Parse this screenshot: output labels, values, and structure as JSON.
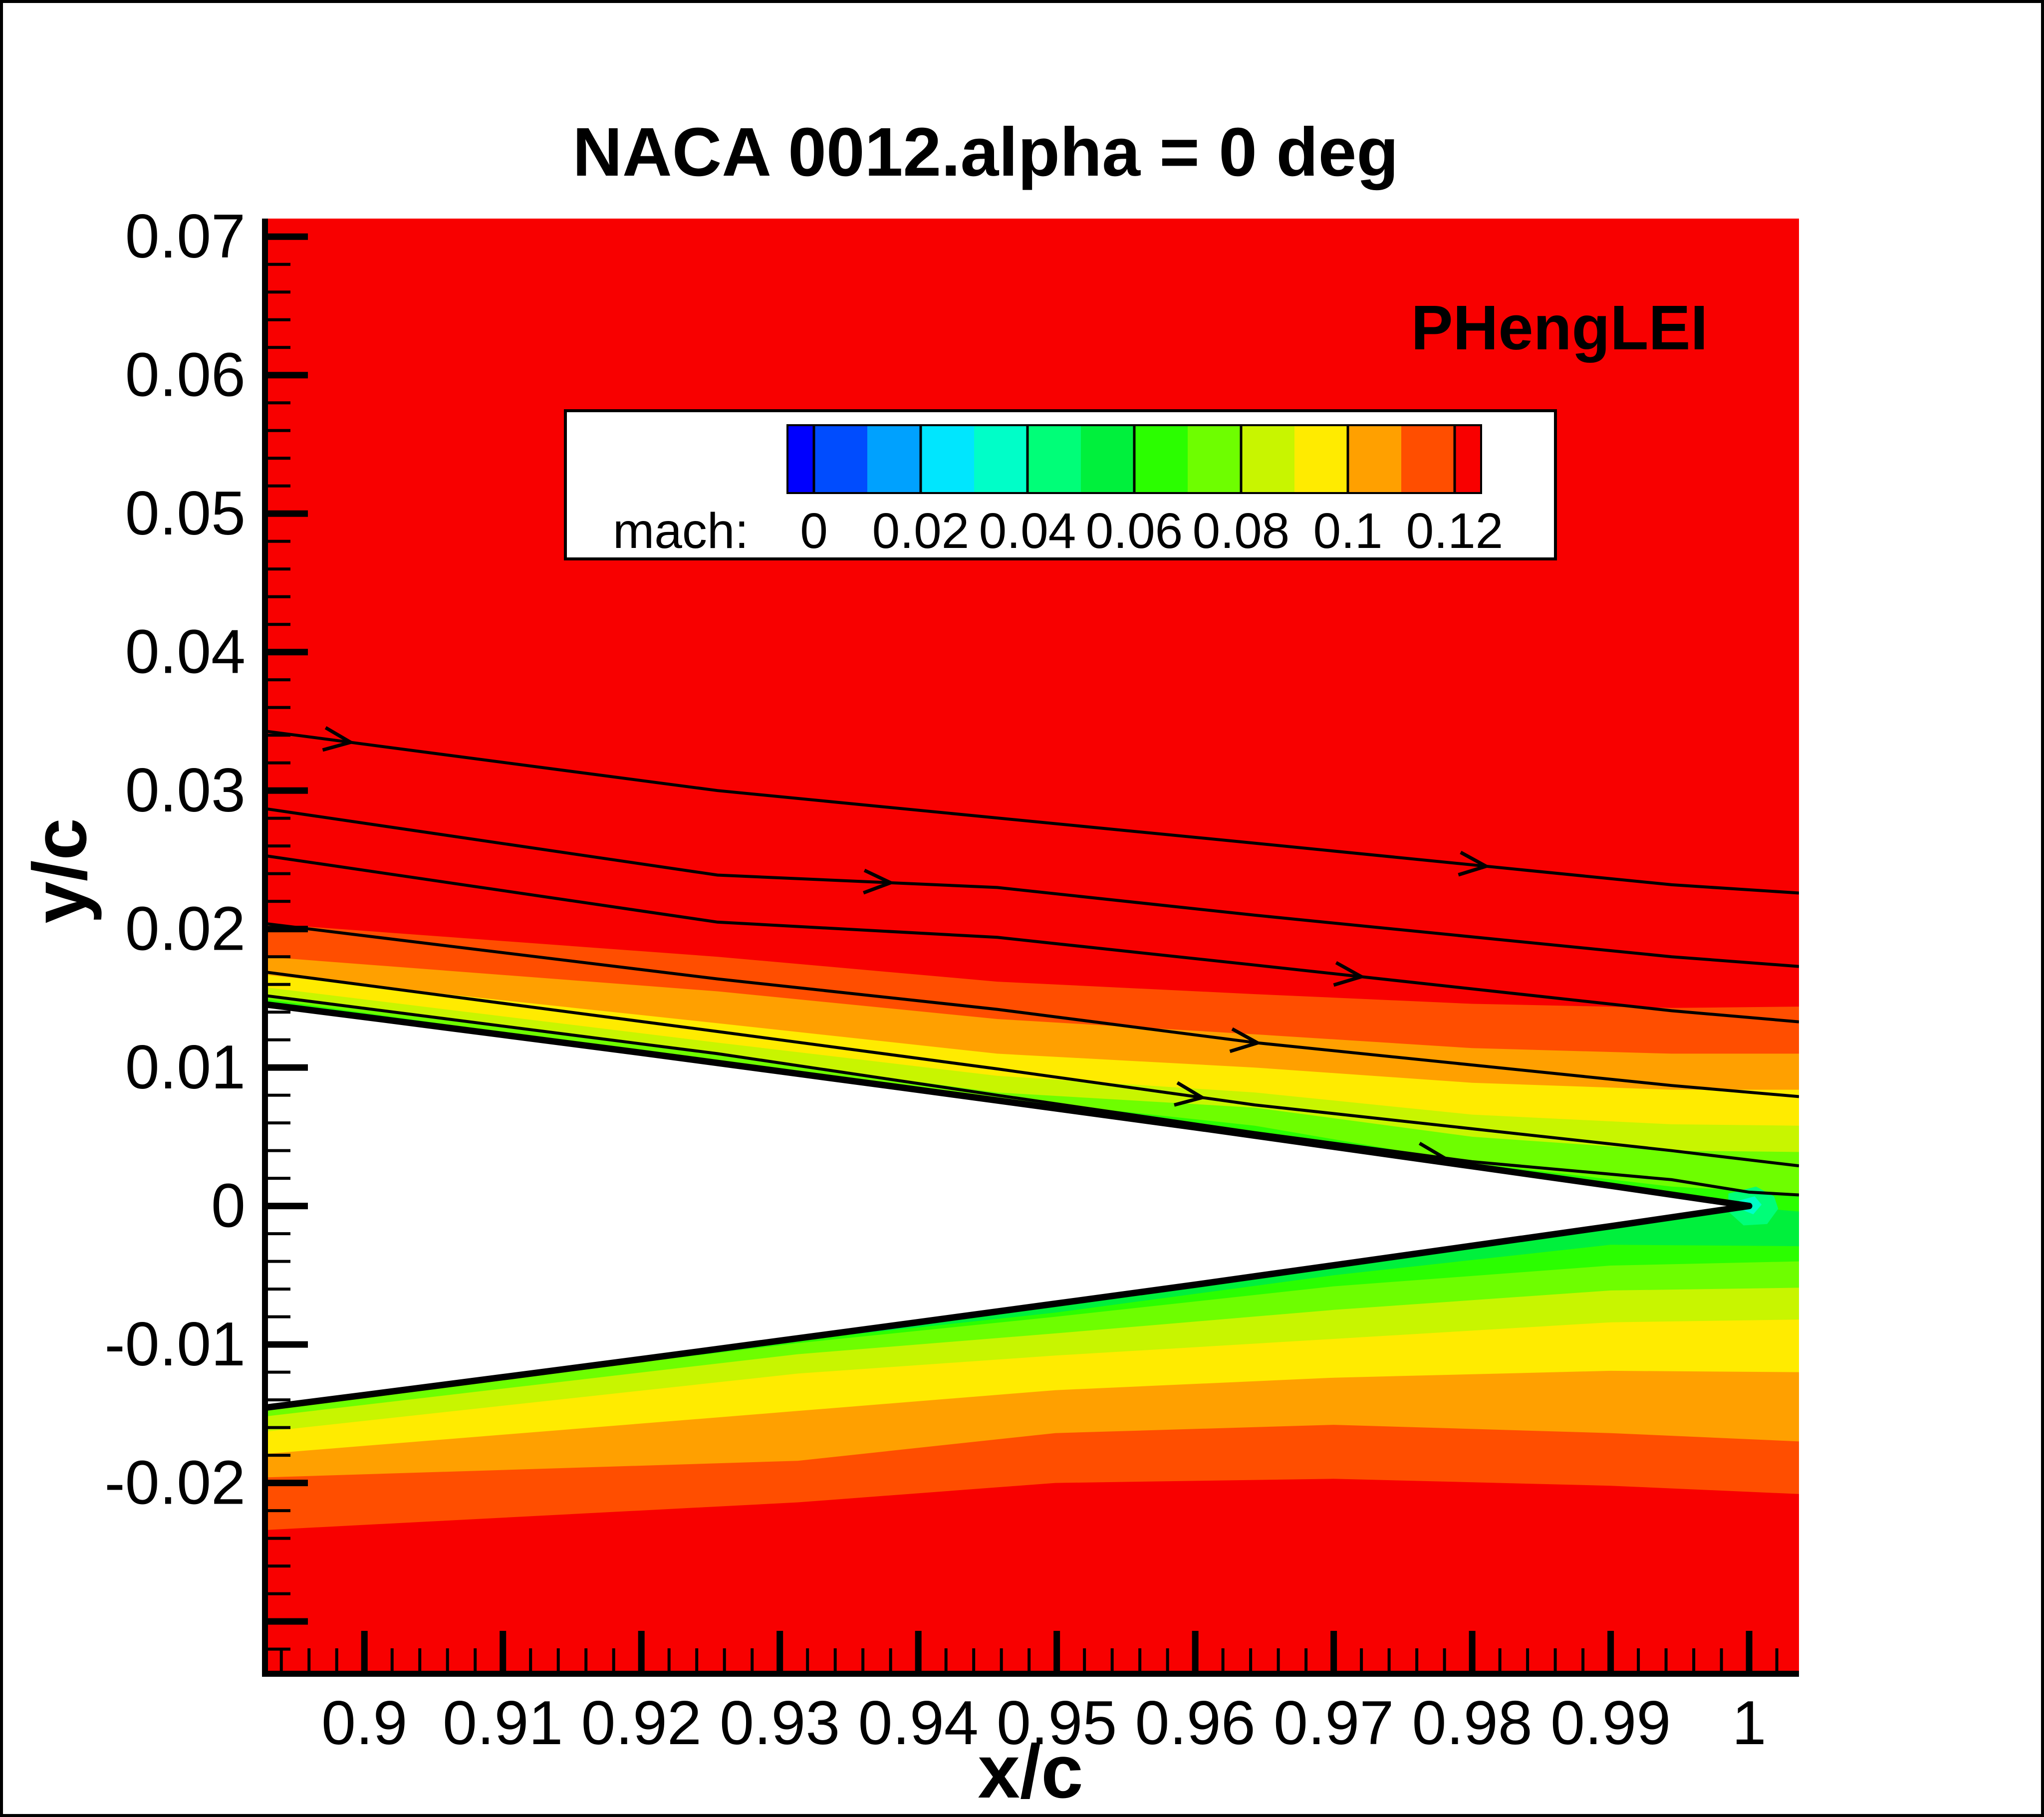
{
  "canvas": {
    "background": "#ffffff",
    "frame_color": "#000000"
  },
  "header": {
    "title": "NACA 0012.alpha = 0 deg"
  },
  "watermark": {
    "text": "PHengLEI",
    "color": "#000000"
  },
  "chart_data": {
    "type": "heatmap",
    "subtype": "filled-contour-with-streamlines",
    "title": "NACA 0012.alpha = 0 deg",
    "xlabel": "x/c",
    "ylabel": "y/c",
    "xlim": [
      0.89282,
      1.0036
    ],
    "ylim": [
      -0.03378,
      0.07134
    ],
    "grid": false,
    "field_color": "#f80000",
    "quantity": "mach",
    "contour_levels": [
      0,
      0.01,
      0.02,
      0.03,
      0.04,
      0.05,
      0.06,
      0.07,
      0.08,
      0.09,
      0.1,
      0.11,
      0.12
    ],
    "x_major_ticks": [
      {
        "v": 0.9,
        "label": "0.9"
      },
      {
        "v": 0.91,
        "label": "0.91"
      },
      {
        "v": 0.92,
        "label": "0.92"
      },
      {
        "v": 0.93,
        "label": "0.93"
      },
      {
        "v": 0.94,
        "label": "0.94"
      },
      {
        "v": 0.95,
        "label": "0.95"
      },
      {
        "v": 0.96,
        "label": "0.96"
      },
      {
        "v": 0.97,
        "label": "0.97"
      },
      {
        "v": 0.98,
        "label": "0.98"
      },
      {
        "v": 0.99,
        "label": "0.99"
      },
      {
        "v": 1.0,
        "label": "1"
      }
    ],
    "y_major_ticks": [
      {
        "v": 0.07,
        "label": "0.07"
      },
      {
        "v": 0.06,
        "label": "0.06"
      },
      {
        "v": 0.05,
        "label": "0.05"
      },
      {
        "v": 0.04,
        "label": "0.04"
      },
      {
        "v": 0.03,
        "label": "0.03"
      },
      {
        "v": 0.02,
        "label": "0.02"
      },
      {
        "v": 0.01,
        "label": "0.01"
      },
      {
        "v": 0.0,
        "label": "0"
      },
      {
        "v": -0.01,
        "label": "-0.01"
      },
      {
        "v": -0.02,
        "label": "-0.02"
      },
      {
        "v": -0.03,
        "label": ""
      }
    ],
    "x_minor": {
      "start": 0.894,
      "end": 1.002,
      "step": 0.002
    },
    "y_minor": {
      "start": -0.032,
      "end": 0.068,
      "step": 0.002
    },
    "bands": [
      {
        "level": "0.11-0.12",
        "color": "#FF4E00",
        "upper": [
          [
            0.8928,
            0.0204
          ],
          [
            0.9255,
            0.018
          ],
          [
            0.9457,
            0.0162
          ],
          [
            0.9643,
            0.0153
          ],
          [
            0.98,
            0.0146
          ],
          [
            0.9944,
            0.0143
          ],
          [
            1.0036,
            0.0144
          ]
        ],
        "lower": [
          [
            0.8928,
            -0.0234
          ],
          [
            0.9313,
            -0.0214
          ],
          [
            0.9499,
            -0.02
          ],
          [
            0.97,
            -0.0197
          ],
          [
            0.99,
            -0.0202
          ],
          [
            1.0036,
            -0.0208
          ]
        ]
      },
      {
        "level": "0.10-0.11",
        "color": "#FFA000",
        "upper": [
          [
            0.8928,
            0.018
          ],
          [
            0.9255,
            0.0155
          ],
          [
            0.9457,
            0.0135
          ],
          [
            0.9643,
            0.0124
          ],
          [
            0.98,
            0.0114
          ],
          [
            0.9944,
            0.011
          ],
          [
            1.0036,
            0.011
          ]
        ],
        "lower": [
          [
            0.8928,
            -0.0196
          ],
          [
            0.9313,
            -0.0184
          ],
          [
            0.9499,
            -0.0164
          ],
          [
            0.97,
            -0.0158
          ],
          [
            0.99,
            -0.0164
          ],
          [
            1.0036,
            -0.017
          ]
        ]
      },
      {
        "level": "0.09-0.10",
        "color": "#FFEB00",
        "upper": [
          [
            0.8928,
            0.0167
          ],
          [
            0.9255,
            0.0132
          ],
          [
            0.9457,
            0.011
          ],
          [
            0.9643,
            0.01
          ],
          [
            0.98,
            0.0089
          ],
          [
            0.9944,
            0.0084
          ],
          [
            1.0036,
            0.0084
          ]
        ],
        "lower": [
          [
            0.8928,
            -0.0179
          ],
          [
            0.9313,
            -0.0148
          ],
          [
            0.9499,
            -0.0133
          ],
          [
            0.97,
            -0.0124
          ],
          [
            0.99,
            -0.0119
          ],
          [
            1.0036,
            -0.012
          ]
        ]
      },
      {
        "level": "0.08-0.09",
        "color": "#C8F500",
        "upper": [
          [
            0.8928,
            0.0158
          ],
          [
            0.9255,
            0.0118
          ],
          [
            0.9457,
            0.0094
          ],
          [
            0.9643,
            0.0082
          ],
          [
            0.98,
            0.0066
          ],
          [
            0.9944,
            0.0059
          ],
          [
            1.0036,
            0.0058
          ]
        ],
        "lower": [
          [
            0.8928,
            -0.0163
          ],
          [
            0.9313,
            -0.0121
          ],
          [
            0.9499,
            -0.0108
          ],
          [
            0.97,
            -0.0096
          ],
          [
            0.99,
            -0.0084
          ],
          [
            1.0036,
            -0.0082
          ]
        ]
      },
      {
        "level": "0.07-0.08",
        "color": "#6EFE00",
        "upper": [
          [
            0.8928,
            0.0153
          ],
          [
            0.9255,
            0.0109
          ],
          [
            0.9457,
            0.0082
          ],
          [
            0.9643,
            0.0071
          ],
          [
            0.98,
            0.005
          ],
          [
            0.9944,
            0.004
          ],
          [
            1.0036,
            0.0039
          ]
        ],
        "lower": [
          [
            0.8928,
            -0.0152
          ],
          [
            0.9313,
            -0.0107
          ],
          [
            0.9499,
            -0.0092
          ],
          [
            0.97,
            -0.0075
          ],
          [
            0.99,
            -0.0061
          ],
          [
            1.0036,
            -0.0059
          ]
        ]
      },
      {
        "level": "0.06-0.07",
        "color": "#2BFE00",
        "upper": [
          [
            0.8928,
            0.01495
          ],
          [
            0.9255,
            0.0104
          ],
          [
            0.9457,
            0.0078
          ],
          [
            0.9643,
            0.0058
          ],
          [
            0.98,
            0.0031
          ],
          [
            0.9944,
            0.0014
          ],
          [
            1.0036,
            0.0009
          ]
        ],
        "lower": [
          [
            0.8928,
            -0.0146
          ],
          [
            0.9313,
            -0.0099
          ],
          [
            0.9499,
            -0.008
          ],
          [
            0.97,
            -0.0058
          ],
          [
            0.99,
            -0.0043
          ],
          [
            1.0036,
            -0.004
          ]
        ]
      },
      {
        "level": "0.05-0.06",
        "color": "#00F03C",
        "upper": [
          [
            0.8928,
            0.0148
          ],
          [
            0.9255,
            0.0102
          ],
          [
            0.9457,
            0.0075
          ],
          [
            0.9643,
            0.0052
          ],
          [
            0.98,
            0.0024
          ],
          [
            0.9944,
            0.0004
          ],
          [
            1.0036,
            -0.0004
          ]
        ],
        "lower": [
          [
            0.8928,
            -0.0144
          ],
          [
            0.9313,
            -0.0097
          ],
          [
            0.9499,
            -0.0077
          ],
          [
            0.97,
            -0.005
          ],
          [
            0.99,
            -0.0028
          ],
          [
            1.0036,
            -0.0029
          ]
        ]
      }
    ],
    "te_blobs": [
      {
        "level": "0.04-0.05",
        "color": "#00FE78",
        "points": [
          [
            0.9985,
            0.0009
          ],
          [
            1.0005,
            0.0014
          ],
          [
            1.0018,
            0.0007
          ],
          [
            1.0021,
            -0.0002
          ],
          [
            1.0013,
            -0.0013
          ],
          [
            0.9996,
            -0.0014
          ],
          [
            0.9985,
            -0.0004
          ]
        ]
      },
      {
        "level": "0.03-0.04",
        "color": "#00FEC8",
        "points": [
          [
            0.9993,
            0.0004
          ],
          [
            1.0004,
            0.0007
          ],
          [
            1.0009,
            0.0001
          ],
          [
            1.0003,
            -0.0006
          ],
          [
            0.9993,
            -0.0002
          ]
        ]
      }
    ],
    "airfoil": {
      "name": "NACA 0012 trailing edge",
      "fill": "#ffffff",
      "stroke": "#000000",
      "upper": [
        [
          0.889,
          0.01505
        ],
        [
          0.9,
          0.01365
        ],
        [
          0.91,
          0.01236
        ],
        [
          0.92,
          0.01106
        ],
        [
          0.93,
          0.00973
        ],
        [
          0.94,
          0.00839
        ],
        [
          0.95,
          0.00704
        ],
        [
          0.96,
          0.00568
        ],
        [
          0.97,
          0.00428
        ],
        [
          0.98,
          0.00287
        ],
        [
          0.99,
          0.00146
        ],
        [
          1.0,
          0.0
        ]
      ]
    },
    "streamlines": [
      {
        "points": [
          [
            0.8928,
            0.0343
          ],
          [
            0.9255,
            0.03
          ],
          [
            0.9643,
            0.0262
          ],
          [
            0.9944,
            0.0232
          ],
          [
            1.0036,
            0.0226
          ]
        ],
        "arrows": [
          0.899,
          0.981
        ]
      },
      {
        "points": [
          [
            0.8928,
            0.0287
          ],
          [
            0.9255,
            0.0239
          ],
          [
            0.9457,
            0.023
          ],
          [
            0.9643,
            0.021
          ],
          [
            0.9944,
            0.018
          ],
          [
            1.0036,
            0.0173
          ]
        ],
        "arrows": [
          0.938
        ]
      },
      {
        "points": [
          [
            0.8928,
            0.0253
          ],
          [
            0.9255,
            0.0205
          ],
          [
            0.9457,
            0.0194
          ],
          [
            0.9643,
            0.0174
          ],
          [
            0.9944,
            0.0141
          ],
          [
            1.0036,
            0.0133
          ]
        ],
        "arrows": [
          0.972
        ]
      },
      {
        "points": [
          [
            0.8928,
            0.0204
          ],
          [
            0.9255,
            0.0164
          ],
          [
            0.9457,
            0.0142
          ],
          [
            0.9643,
            0.0118
          ],
          [
            0.9944,
            0.0087
          ],
          [
            1.0036,
            0.0079
          ]
        ],
        "arrows": [
          0.9645
        ]
      },
      {
        "points": [
          [
            0.8928,
            0.0169
          ],
          [
            0.9255,
            0.0126
          ],
          [
            0.9457,
            0.0099
          ],
          [
            0.9643,
            0.0073
          ],
          [
            0.9944,
            0.004
          ],
          [
            1.0036,
            0.0029
          ]
        ],
        "arrows": [
          0.9605
        ]
      },
      {
        "points": [
          [
            0.8928,
            0.0152
          ],
          [
            0.9255,
            0.011
          ],
          [
            0.9457,
            0.008
          ],
          [
            0.9643,
            0.0053
          ],
          [
            0.98,
            0.0032
          ],
          [
            0.9944,
            0.0019
          ],
          [
            1.0,
            0.001
          ],
          [
            1.0036,
            0.0008
          ]
        ],
        "arrows": [
          0.978
        ]
      }
    ],
    "legend": {
      "label": "mach:",
      "tick_labels": [
        "0",
        "0.02",
        "0.04",
        "0.06",
        "0.08",
        "0.1",
        "0.12"
      ],
      "band_colors": [
        "#0000FE",
        "#004CFE",
        "#00A1FE",
        "#00E6FE",
        "#00FEC8",
        "#00FE78",
        "#00F03C",
        "#2BFE00",
        "#6EFE00",
        "#C8F500",
        "#FFEB00",
        "#FFA000",
        "#FF4E00",
        "#F80000"
      ],
      "position": "top-center-inside"
    }
  }
}
